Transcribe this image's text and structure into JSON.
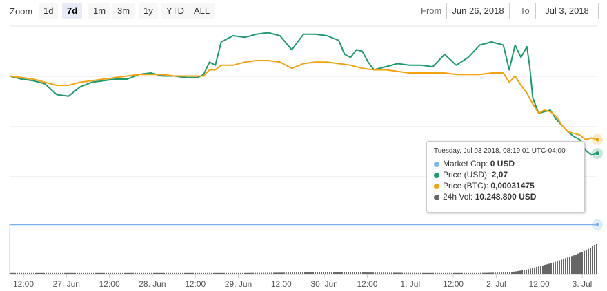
{
  "toolbar": {
    "zoom_label": "Zoom",
    "buttons": [
      "1d",
      "7d",
      "1m",
      "3m",
      "1y",
      "YTD",
      "ALL"
    ],
    "active": "7d",
    "from_label": "From",
    "from_value": "Jun 26, 2018",
    "to_label": "To",
    "to_value": "Jul 3, 2018"
  },
  "tooltip": {
    "date": "Tuesday, Jul 03 2018, 08:19:01 UTC-04:00",
    "rows": [
      {
        "label": "Market Cap:",
        "value": "0 USD",
        "color": "#7cb5ec"
      },
      {
        "label": "Price (USD):",
        "value": "2,07",
        "color": "#1e9a6b"
      },
      {
        "label": "Price (BTC):",
        "value": "0,00031475",
        "color": "#f4a30f"
      },
      {
        "label": "24h Vol:",
        "value": "10.248.800 USD",
        "color": "#666666"
      }
    ]
  },
  "chart_data": {
    "type": "line",
    "x_tick_labels": [
      "12:00",
      "27. Jun",
      "12:00",
      "28. Jun",
      "12:00",
      "29. Jun",
      "12:00",
      "30. Jun",
      "12:00",
      "1. Jul",
      "12:00",
      "2. Jul",
      "12:00",
      "3. Jul"
    ],
    "grid": true,
    "colors": {
      "usd": "#1e9a6b",
      "btc": "#f4a30f",
      "market_cap": "#7cb5ec",
      "volume": "#666666"
    },
    "note": "y axis has no printed labels; series values are relative 0-100 levels",
    "series": [
      {
        "key": "usd",
        "x": [
          0,
          2,
          4,
          6,
          8,
          10,
          12,
          14,
          16,
          18,
          20,
          22,
          24,
          26,
          28,
          30,
          32,
          33,
          34,
          35,
          36,
          38,
          40,
          42,
          44,
          46,
          48,
          50,
          52,
          54,
          56,
          57,
          58,
          59,
          60,
          61,
          62,
          64,
          66,
          68,
          70,
          72,
          74,
          76,
          78,
          80,
          82,
          84,
          85,
          86,
          87,
          88,
          88.5,
          89,
          90,
          91,
          92,
          93,
          94,
          95,
          96,
          97,
          98,
          99,
          100
        ],
        "values": [
          66,
          64,
          63,
          61,
          54,
          53,
          59,
          62,
          63,
          64,
          64,
          67,
          68,
          66,
          66,
          65,
          65,
          67,
          75,
          73,
          88,
          92,
          91,
          93,
          94,
          92,
          83,
          93,
          93,
          92,
          89,
          80,
          78,
          83,
          82,
          75,
          70,
          72,
          74,
          73,
          73,
          72,
          80,
          73,
          78,
          86,
          88,
          86,
          70,
          86,
          78,
          85,
          72,
          52,
          42,
          43,
          44,
          38,
          34,
          30,
          27,
          25,
          18,
          15,
          16
        ]
      },
      {
        "key": "btc",
        "x": [
          0,
          2,
          4,
          6,
          8,
          10,
          12,
          14,
          16,
          18,
          20,
          22,
          24,
          26,
          28,
          30,
          32,
          33,
          34,
          35,
          36,
          38,
          40,
          42,
          44,
          46,
          48,
          50,
          52,
          54,
          56,
          58,
          60,
          62,
          64,
          66,
          68,
          70,
          72,
          74,
          76,
          78,
          80,
          82,
          84,
          85,
          86,
          87,
          88,
          89,
          90,
          91,
          92,
          93,
          94,
          95,
          96,
          97,
          98,
          99,
          100
        ],
        "values": [
          66,
          65,
          64,
          62,
          60,
          60,
          62,
          63,
          64,
          65,
          66,
          67,
          67,
          67,
          66,
          66,
          66,
          66,
          70,
          70,
          73,
          73,
          75,
          76,
          76,
          75,
          71,
          74,
          75,
          75,
          74,
          73,
          71,
          70,
          70,
          69,
          68,
          68,
          68,
          68,
          67,
          67,
          67,
          68,
          68,
          62,
          66,
          60,
          55,
          48,
          42,
          44,
          43,
          40,
          34,
          30,
          29,
          28,
          25,
          26,
          25
        ]
      },
      {
        "key": "market_cap",
        "x": [
          0,
          100
        ],
        "values": [
          1,
          1
        ]
      },
      {
        "key": "volume",
        "x": [
          0,
          10,
          20,
          30,
          40,
          50,
          60,
          70,
          80,
          84,
          86,
          88,
          90,
          92,
          94,
          96,
          98,
          100
        ],
        "values": [
          3,
          3,
          3,
          3,
          3,
          4,
          4,
          3,
          3,
          4,
          6,
          10,
          16,
          22,
          30,
          38,
          48,
          62
        ]
      }
    ]
  }
}
